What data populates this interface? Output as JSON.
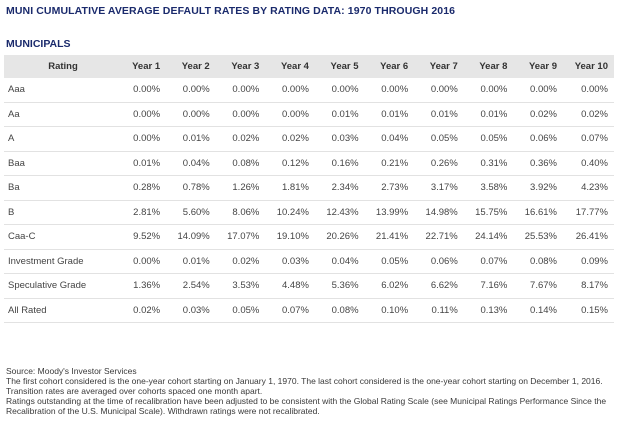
{
  "title": "MUNI CUMULATIVE AVERAGE DEFAULT RATES BY RATING DATA: 1970 THROUGH 2016",
  "section": "MUNICIPALS",
  "table": {
    "headers": [
      "Rating",
      "Year 1",
      "Year 2",
      "Year 3",
      "Year 4",
      "Year 5",
      "Year 6",
      "Year 7",
      "Year 8",
      "Year 9",
      "Year 10"
    ],
    "rows": [
      [
        "Aaa",
        "0.00%",
        "0.00%",
        "0.00%",
        "0.00%",
        "0.00%",
        "0.00%",
        "0.00%",
        "0.00%",
        "0.00%",
        "0.00%"
      ],
      [
        "Aa",
        "0.00%",
        "0.00%",
        "0.00%",
        "0.00%",
        "0.01%",
        "0.01%",
        "0.01%",
        "0.01%",
        "0.02%",
        "0.02%"
      ],
      [
        "A",
        "0.00%",
        "0.01%",
        "0.02%",
        "0.02%",
        "0.03%",
        "0.04%",
        "0.05%",
        "0.05%",
        "0.06%",
        "0.07%"
      ],
      [
        "Baa",
        "0.01%",
        "0.04%",
        "0.08%",
        "0.12%",
        "0.16%",
        "0.21%",
        "0.26%",
        "0.31%",
        "0.36%",
        "0.40%"
      ],
      [
        "Ba",
        "0.28%",
        "0.78%",
        "1.26%",
        "1.81%",
        "2.34%",
        "2.73%",
        "3.17%",
        "3.58%",
        "3.92%",
        "4.23%"
      ],
      [
        "B",
        "2.81%",
        "5.60%",
        "8.06%",
        "10.24%",
        "12.43%",
        "13.99%",
        "14.98%",
        "15.75%",
        "16.61%",
        "17.77%"
      ],
      [
        "Caa-C",
        "9.52%",
        "14.09%",
        "17.07%",
        "19.10%",
        "20.26%",
        "21.41%",
        "22.71%",
        "24.14%",
        "25.53%",
        "26.41%"
      ],
      [
        "Investment Grade",
        "0.00%",
        "0.01%",
        "0.02%",
        "0.03%",
        "0.04%",
        "0.05%",
        "0.06%",
        "0.07%",
        "0.08%",
        "0.09%"
      ],
      [
        "Speculative Grade",
        "1.36%",
        "2.54%",
        "3.53%",
        "4.48%",
        "5.36%",
        "6.02%",
        "6.62%",
        "7.16%",
        "7.67%",
        "8.17%"
      ],
      [
        "All Rated",
        "0.02%",
        "0.03%",
        "0.05%",
        "0.07%",
        "0.08%",
        "0.10%",
        "0.11%",
        "0.13%",
        "0.14%",
        "0.15%"
      ]
    ]
  },
  "notes": [
    "Source: Moody's Investor Services",
    "The first cohort considered is the one-year cohort starting on January 1, 1970. The last cohort considered is the one-year cohort starting on December 1, 2016.",
    "Transition rates are averaged over cohorts spaced one month apart.",
    "Ratings outstanding at the time of recalibration have been adjusted to be consistent with the Global Rating Scale (see Municipal Ratings Performance Since the Recalibration of the U.S. Municipal Scale). Withdrawn ratings were not recalibrated."
  ]
}
